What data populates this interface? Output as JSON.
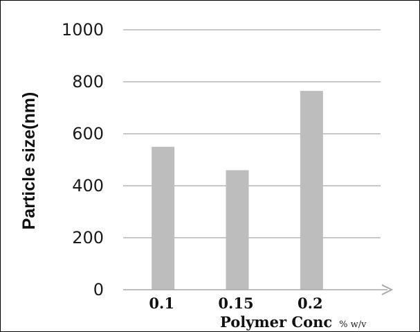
{
  "chart_data": {
    "type": "bar",
    "categories": [
      "0.1",
      "0.15",
      "0.2"
    ],
    "values": [
      550,
      460,
      765
    ],
    "xlabel": "Polymer Conc",
    "xlabel_unit": "% w/v",
    "ylabel": "Particle size(nm)",
    "ylim": [
      0,
      1000
    ],
    "yticks": [
      0,
      200,
      400,
      600,
      800,
      1000
    ],
    "grid": true,
    "bar_color": "#bdbdbd",
    "grid_color": "#a8a8a8"
  }
}
